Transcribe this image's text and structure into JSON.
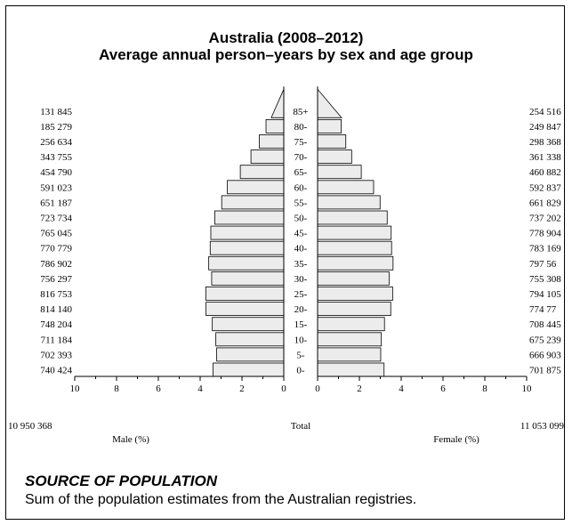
{
  "chart_data": {
    "type": "bar",
    "title": "Australia (2008–2012)",
    "subtitle": "Average annual person–years by sex and age group",
    "categories": [
      "0-",
      "5-",
      "10-",
      "15-",
      "20-",
      "25-",
      "30-",
      "35-",
      "40-",
      "45-",
      "50-",
      "55-",
      "60-",
      "65-",
      "70-",
      "75-",
      "80-",
      "85+"
    ],
    "series": [
      {
        "name": "Male",
        "side": "left",
        "counts": [
          "740 424",
          "702 393",
          "711 184",
          "748 204",
          "814 140",
          "816 753",
          "756 297",
          "786 902",
          "770 779",
          "765 045",
          "723 734",
          "651 187",
          "591 023",
          "454 790",
          "343 755",
          "256 634",
          "185 279",
          "131 845"
        ],
        "percent": [
          3.38,
          3.21,
          3.25,
          3.42,
          3.72,
          3.73,
          3.45,
          3.59,
          3.52,
          3.49,
          3.3,
          2.97,
          2.7,
          2.08,
          1.57,
          1.17,
          0.85,
          0.6
        ]
      },
      {
        "name": "Female",
        "side": "right",
        "counts": [
          "701 875",
          "666 903",
          "675 239",
          "708 445",
          "774 77",
          "794 105",
          "755 308",
          "797 56",
          "783 169",
          "778 904",
          "737 202",
          "661 829",
          "592 837",
          "460 882",
          "361 338",
          "298 368",
          "249 847",
          "254 516"
        ],
        "percent": [
          3.18,
          3.02,
          3.05,
          3.2,
          3.5,
          3.59,
          3.42,
          3.61,
          3.54,
          3.52,
          3.33,
          2.99,
          2.68,
          2.09,
          1.63,
          1.35,
          1.13,
          1.15
        ]
      }
    ],
    "xlim": [
      0,
      10
    ],
    "xticks": [
      "10",
      "8",
      "6",
      "4",
      "2",
      "0"
    ],
    "xticks_right": [
      "0",
      "2",
      "4",
      "6",
      "8",
      "10"
    ],
    "xlabel_left": "Male (%)",
    "xlabel_right": "Female (%)",
    "totals": {
      "male": "10 950 368",
      "label": "Total",
      "female": "11 053 099"
    },
    "open_age_group": "85+",
    "bar_fill": "#ececec",
    "bar_stroke": "#000000"
  },
  "source": {
    "heading": "SOURCE OF POPULATION",
    "text": "Sum of the population estimates from the Australian registries."
  }
}
